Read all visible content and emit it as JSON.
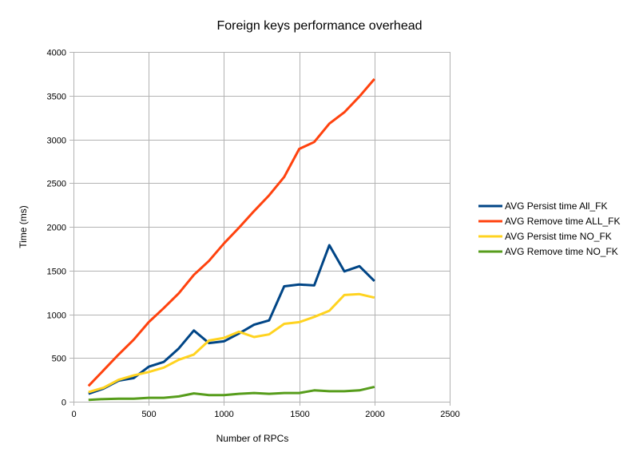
{
  "chart_data": {
    "type": "line",
    "title": "Foreign keys performance overhead",
    "xlabel": "Number of RPCs",
    "ylabel": "Time (ms)",
    "xlim": [
      0,
      2500
    ],
    "ylim": [
      0,
      4000
    ],
    "x_ticks": [
      0,
      500,
      1000,
      1500,
      2000,
      2500
    ],
    "y_ticks": [
      0,
      500,
      1000,
      1500,
      2000,
      2500,
      3000,
      3500,
      4000
    ],
    "grid": true,
    "legend_position": "right",
    "x": [
      100,
      200,
      300,
      400,
      500,
      600,
      700,
      800,
      900,
      1000,
      1100,
      1200,
      1300,
      1400,
      1500,
      1600,
      1700,
      1800,
      1900,
      2000
    ],
    "series": [
      {
        "name": "AVG Persist time All_FK",
        "color": "#004586",
        "values": [
          90,
          150,
          240,
          270,
          400,
          455,
          610,
          815,
          670,
          690,
          780,
          880,
          930,
          1320,
          1340,
          1330,
          1790,
          1490,
          1550,
          1380
        ]
      },
      {
        "name": "AVG Remove time ALL_FK",
        "color": "#ff420e",
        "values": [
          180,
          360,
          540,
          710,
          910,
          1070,
          1240,
          1450,
          1610,
          1810,
          1990,
          2180,
          2360,
          2570,
          2890,
          2970,
          3180,
          3310,
          3490,
          3690
        ]
      },
      {
        "name": "AVG Persist time NO_FK",
        "color": "#ffd320",
        "values": [
          110,
          160,
          250,
          300,
          340,
          390,
          480,
          540,
          700,
          730,
          800,
          740,
          770,
          890,
          910,
          970,
          1040,
          1220,
          1230,
          1190
        ]
      },
      {
        "name": "AVG Remove time NO_FK",
        "color": "#579d1c",
        "values": [
          20,
          30,
          35,
          35,
          45,
          45,
          60,
          95,
          75,
          75,
          90,
          100,
          90,
          100,
          100,
          130,
          120,
          120,
          130,
          170
        ]
      }
    ]
  }
}
